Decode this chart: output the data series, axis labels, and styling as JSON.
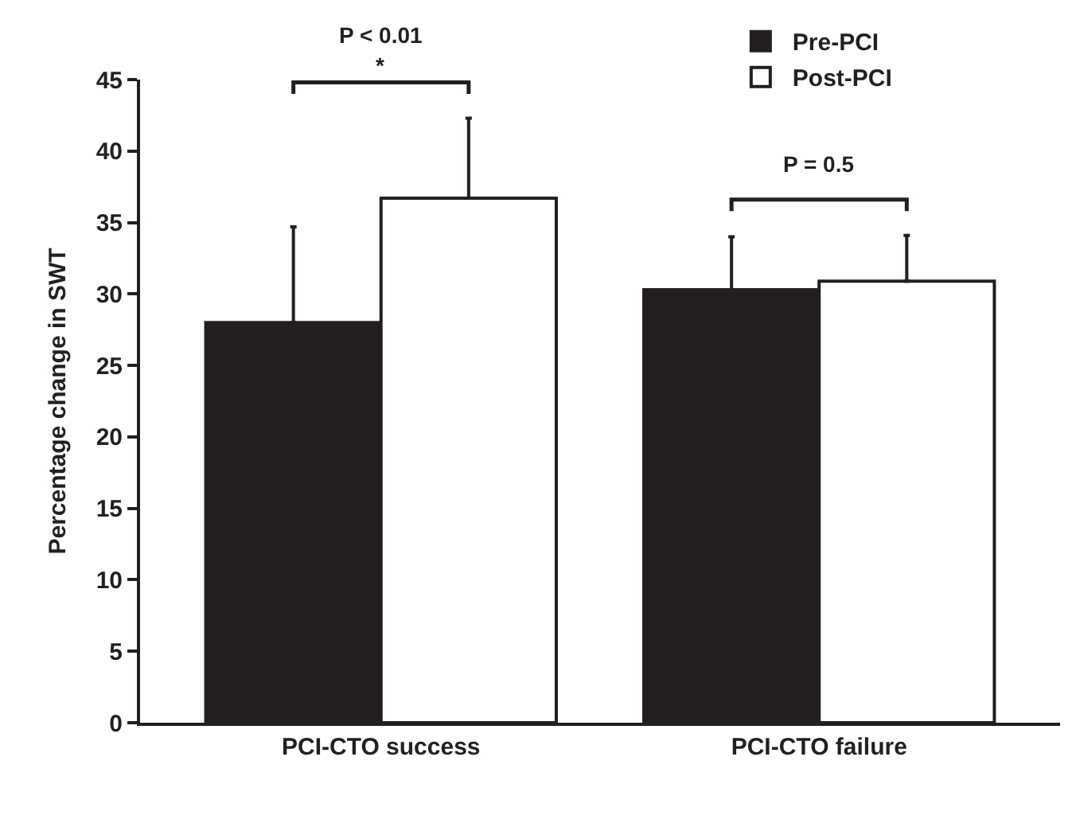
{
  "chart_data": {
    "type": "bar",
    "ylabel": "Percentage change in SWT",
    "categories": [
      "PCI-CTO success",
      "PCI-CTO failure"
    ],
    "series": [
      {
        "name": "Pre-PCI",
        "color": "#231f20",
        "values": [
          28.0,
          30.3
        ],
        "errors": [
          [
            28.0,
            34.7
          ],
          [
            30.3,
            34.0
          ]
        ]
      },
      {
        "name": "Post-PCI",
        "color": "#ffffff",
        "values": [
          36.7,
          30.9
        ],
        "errors": [
          [
            36.7,
            42.3
          ],
          [
            30.9,
            34.1
          ]
        ]
      }
    ],
    "ylim": [
      0,
      45
    ],
    "yticks": [
      0,
      5,
      10,
      15,
      20,
      25,
      30,
      35,
      40,
      45
    ],
    "legend": "top right",
    "annotations": [
      "P < 0.01",
      "*",
      "P = 0.5"
    ]
  }
}
